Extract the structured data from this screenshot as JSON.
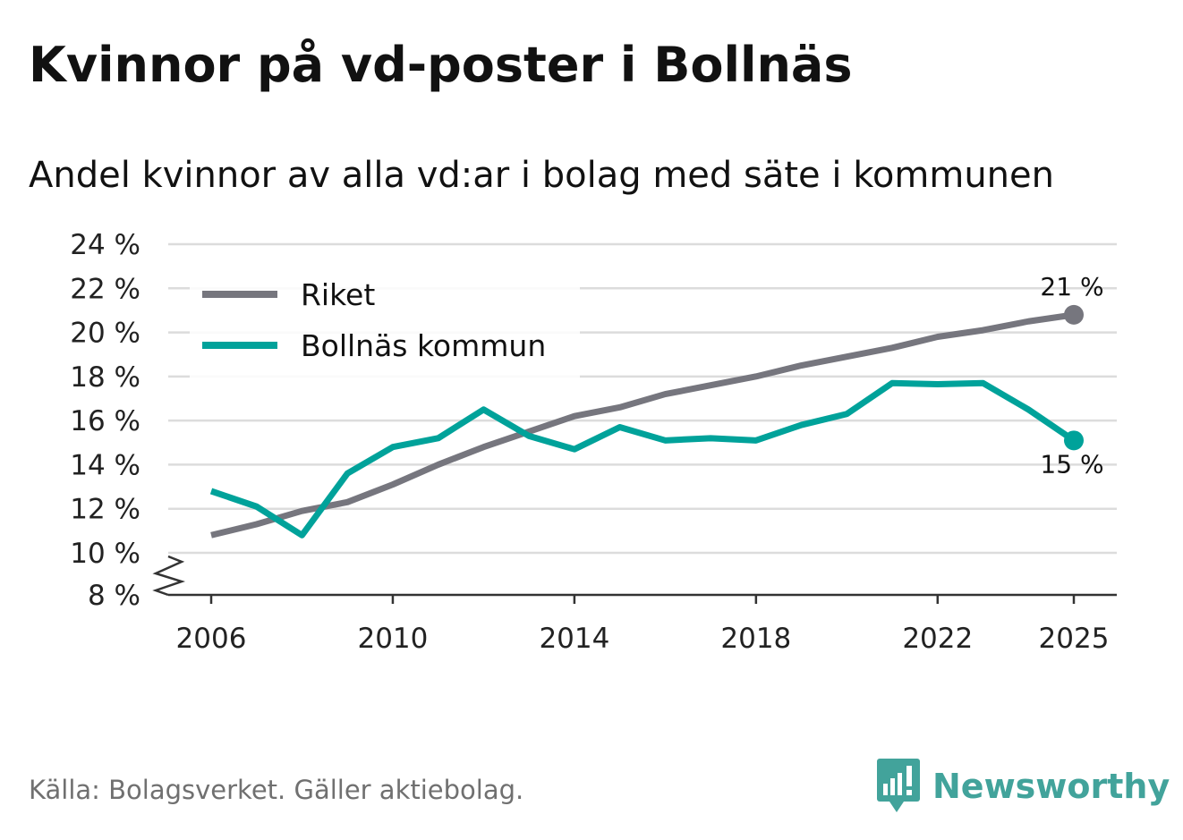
{
  "title": "Kvinnor på vd-poster i Bollnäs",
  "subtitle": "Andel kvinnor av alla vd:ar i bolag med säte i kommunen",
  "source": "Källa: Bolagsverket. Gäller aktiebolag.",
  "brand": {
    "name": "Newsworthy",
    "icon": "newsworthy-logo-icon",
    "color": "#42a39b"
  },
  "colors": {
    "riket": "#76767e",
    "bollnas": "#00a29a",
    "grid": "#dcdcdc",
    "axis": "#333333"
  },
  "chart_data": {
    "type": "line",
    "title": "Kvinnor på vd-poster i Bollnäs",
    "subtitle": "Andel kvinnor av alla vd:ar i bolag med säte i kommunen",
    "xlabel": "",
    "ylabel": "",
    "x": [
      2006,
      2007,
      2008,
      2009,
      2010,
      2011,
      2012,
      2013,
      2014,
      2015,
      2016,
      2017,
      2018,
      2019,
      2020,
      2021,
      2022,
      2023,
      2024,
      2025
    ],
    "series": [
      {
        "name": "Riket",
        "values": [
          10.8,
          11.3,
          11.9,
          12.3,
          13.1,
          14.0,
          14.8,
          15.5,
          16.2,
          16.6,
          17.2,
          17.6,
          18.0,
          18.5,
          18.9,
          19.3,
          19.8,
          20.1,
          20.5,
          20.8
        ]
      },
      {
        "name": "Bollnäs kommun",
        "values": [
          12.8,
          12.1,
          10.8,
          13.6,
          14.8,
          15.2,
          16.5,
          15.3,
          14.7,
          15.7,
          15.1,
          15.2,
          15.1,
          15.8,
          16.3,
          17.7,
          17.65,
          17.7,
          16.5,
          15.1
        ]
      }
    ],
    "ylim": [
      8,
      24
    ],
    "yticks": [
      8,
      10,
      12,
      14,
      16,
      18,
      20,
      22,
      24
    ],
    "ytick_labels": [
      "8 %",
      "10 %",
      "12 %",
      "14 %",
      "16 %",
      "18 %",
      "20 %",
      "22 %",
      "24 %"
    ],
    "xticks": [
      2006,
      2010,
      2014,
      2018,
      2022,
      2025
    ],
    "xtick_labels": [
      "2006",
      "2010",
      "2014",
      "2018",
      "2022",
      "2025"
    ],
    "axis_break": "between 8 % and 10 %",
    "grid": true,
    "legend": {
      "position": "top-left",
      "entries": [
        "Riket",
        "Bollnäs kommun"
      ]
    },
    "end_labels": {
      "riket": "21 %",
      "bollnas": "15 %"
    }
  }
}
